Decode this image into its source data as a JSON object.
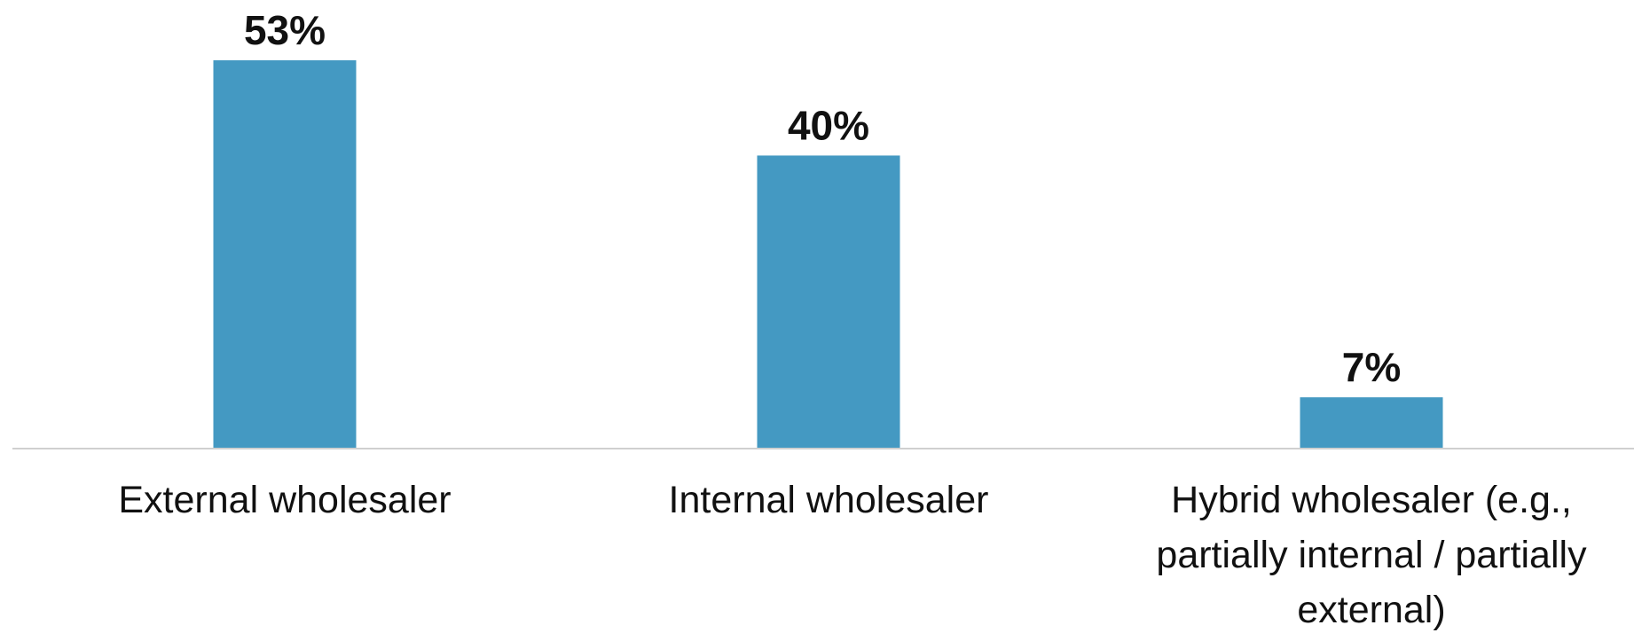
{
  "chart_data": {
    "type": "bar",
    "categories": [
      [
        "External wholesaler"
      ],
      [
        "Internal wholesaler"
      ],
      [
        "Hybrid wholesaler (e.g.,",
        "partially internal / partially",
        "external)"
      ]
    ],
    "values": [
      53,
      40,
      7
    ],
    "value_labels": [
      "53%",
      "40%",
      "7%"
    ],
    "ylim": [
      0,
      55
    ],
    "grid": false,
    "bar_color": "#4499c2",
    "axis_color": "#d0d0d0"
  }
}
